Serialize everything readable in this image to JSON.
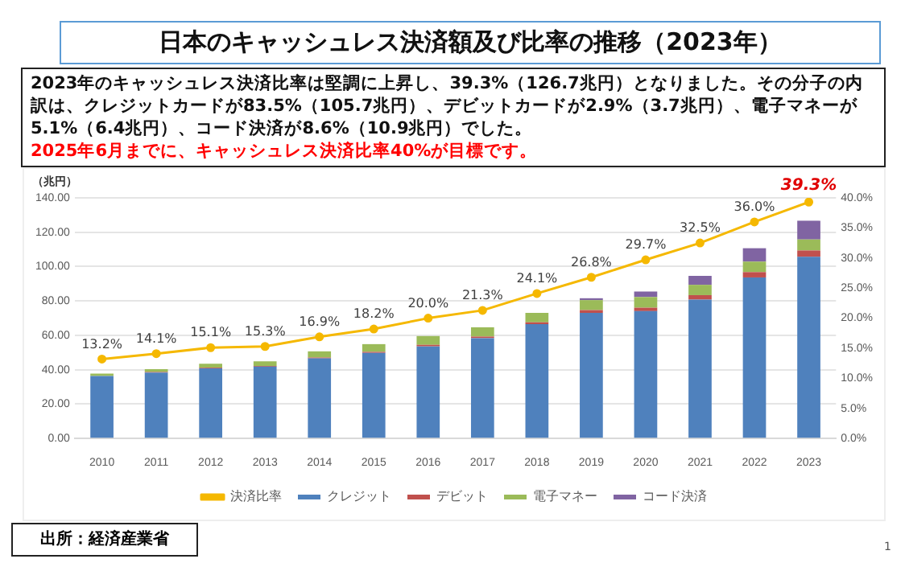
{
  "chart_data": {
    "type": "bar",
    "title": "日本のキャッシュレス決済額及び比率の推移（2023年）",
    "subtitle": "2023年のキャッシュレス決済比率は堅調に上昇し、39.3%（126.7兆円）となりました。その分子の内訳は、クレジットカードが83.5%（105.7兆円）、デビットカードが2.9%（3.7兆円）、電子マネーが5.1%（6.4兆円）、コード決済が8.6%（10.9兆円）でした。",
    "annotations": [
      "2025年6月までに、キャッシュレス決済比率40%が目標です。",
      "出所：経済産業省",
      "1"
    ],
    "ylabel": "（兆円）",
    "categories": [
      "2010",
      "2011",
      "2012",
      "2013",
      "2014",
      "2015",
      "2016",
      "2017",
      "2018",
      "2019",
      "2020",
      "2021",
      "2022",
      "2023"
    ],
    "stacked": true,
    "series": [
      {
        "name": "クレジット",
        "color": "#4f81bd",
        "values": [
          36.4,
          38.3,
          40.8,
          41.8,
          46.6,
          49.8,
          53.6,
          58.4,
          66.5,
          73.1,
          74.1,
          80.8,
          93.7,
          105.7
        ]
      },
      {
        "name": "デビット",
        "color": "#c0504d",
        "values": [
          null,
          0.4,
          0.4,
          0.4,
          0.5,
          0.6,
          0.9,
          0.9,
          1.1,
          1.6,
          2.0,
          2.6,
          3.1,
          3.7
        ]
      },
      {
        "name": "電子マネー",
        "color": "#9bbb59",
        "values": [
          1.4,
          1.6,
          2.3,
          2.7,
          3.6,
          4.5,
          5.1,
          5.4,
          5.5,
          5.8,
          6.2,
          6.0,
          6.1,
          6.4
        ]
      },
      {
        "name": "コード決済",
        "color": "#8064a2",
        "values": [
          null,
          null,
          null,
          null,
          null,
          null,
          null,
          null,
          null,
          1.1,
          3.2,
          5.2,
          7.8,
          10.9
        ]
      },
      {
        "name": "決済比率",
        "type": "line",
        "axis": "y2",
        "color": "#f5b800",
        "values": [
          13.2,
          14.1,
          15.1,
          15.3,
          16.9,
          18.2,
          20.0,
          21.3,
          24.1,
          26.8,
          29.7,
          32.5,
          36.0,
          39.3
        ],
        "value_labels": [
          "13.2%",
          "14.1%",
          "15.1%",
          "15.3%",
          "16.9%",
          "18.2%",
          "20.0%",
          "21.3%",
          "24.1%",
          "26.8%",
          "29.7%",
          "32.5%",
          "36.0%",
          "39.3%"
        ]
      }
    ],
    "ylim": [
      0,
      140
    ],
    "yticks": [
      {
        "value": 0,
        "label": "0.00"
      },
      {
        "value": 20,
        "label": "20.00"
      },
      {
        "value": 40,
        "label": "40.00"
      },
      {
        "value": 60,
        "label": "60.00"
      },
      {
        "value": 80,
        "label": "80.00"
      },
      {
        "value": 100,
        "label": "100.00"
      },
      {
        "value": 120,
        "label": "120.00"
      },
      {
        "value": 140,
        "label": "140.00"
      }
    ],
    "y2lim": [
      0,
      40
    ],
    "y2ticks": [
      {
        "value": 0,
        "label": "0.0%"
      },
      {
        "value": 5,
        "label": "5.0%"
      },
      {
        "value": 10,
        "label": "10.0%"
      },
      {
        "value": 15,
        "label": "15.0%"
      },
      {
        "value": 20,
        "label": "20.0%"
      },
      {
        "value": 25,
        "label": "25.0%"
      },
      {
        "value": 30,
        "label": "30.0%"
      },
      {
        "value": 35,
        "label": "35.0%"
      },
      {
        "value": 40,
        "label": "40.0%"
      }
    ],
    "grid": "y",
    "legend": "bottom",
    "marker": "circle",
    "line_style": "solid"
  }
}
